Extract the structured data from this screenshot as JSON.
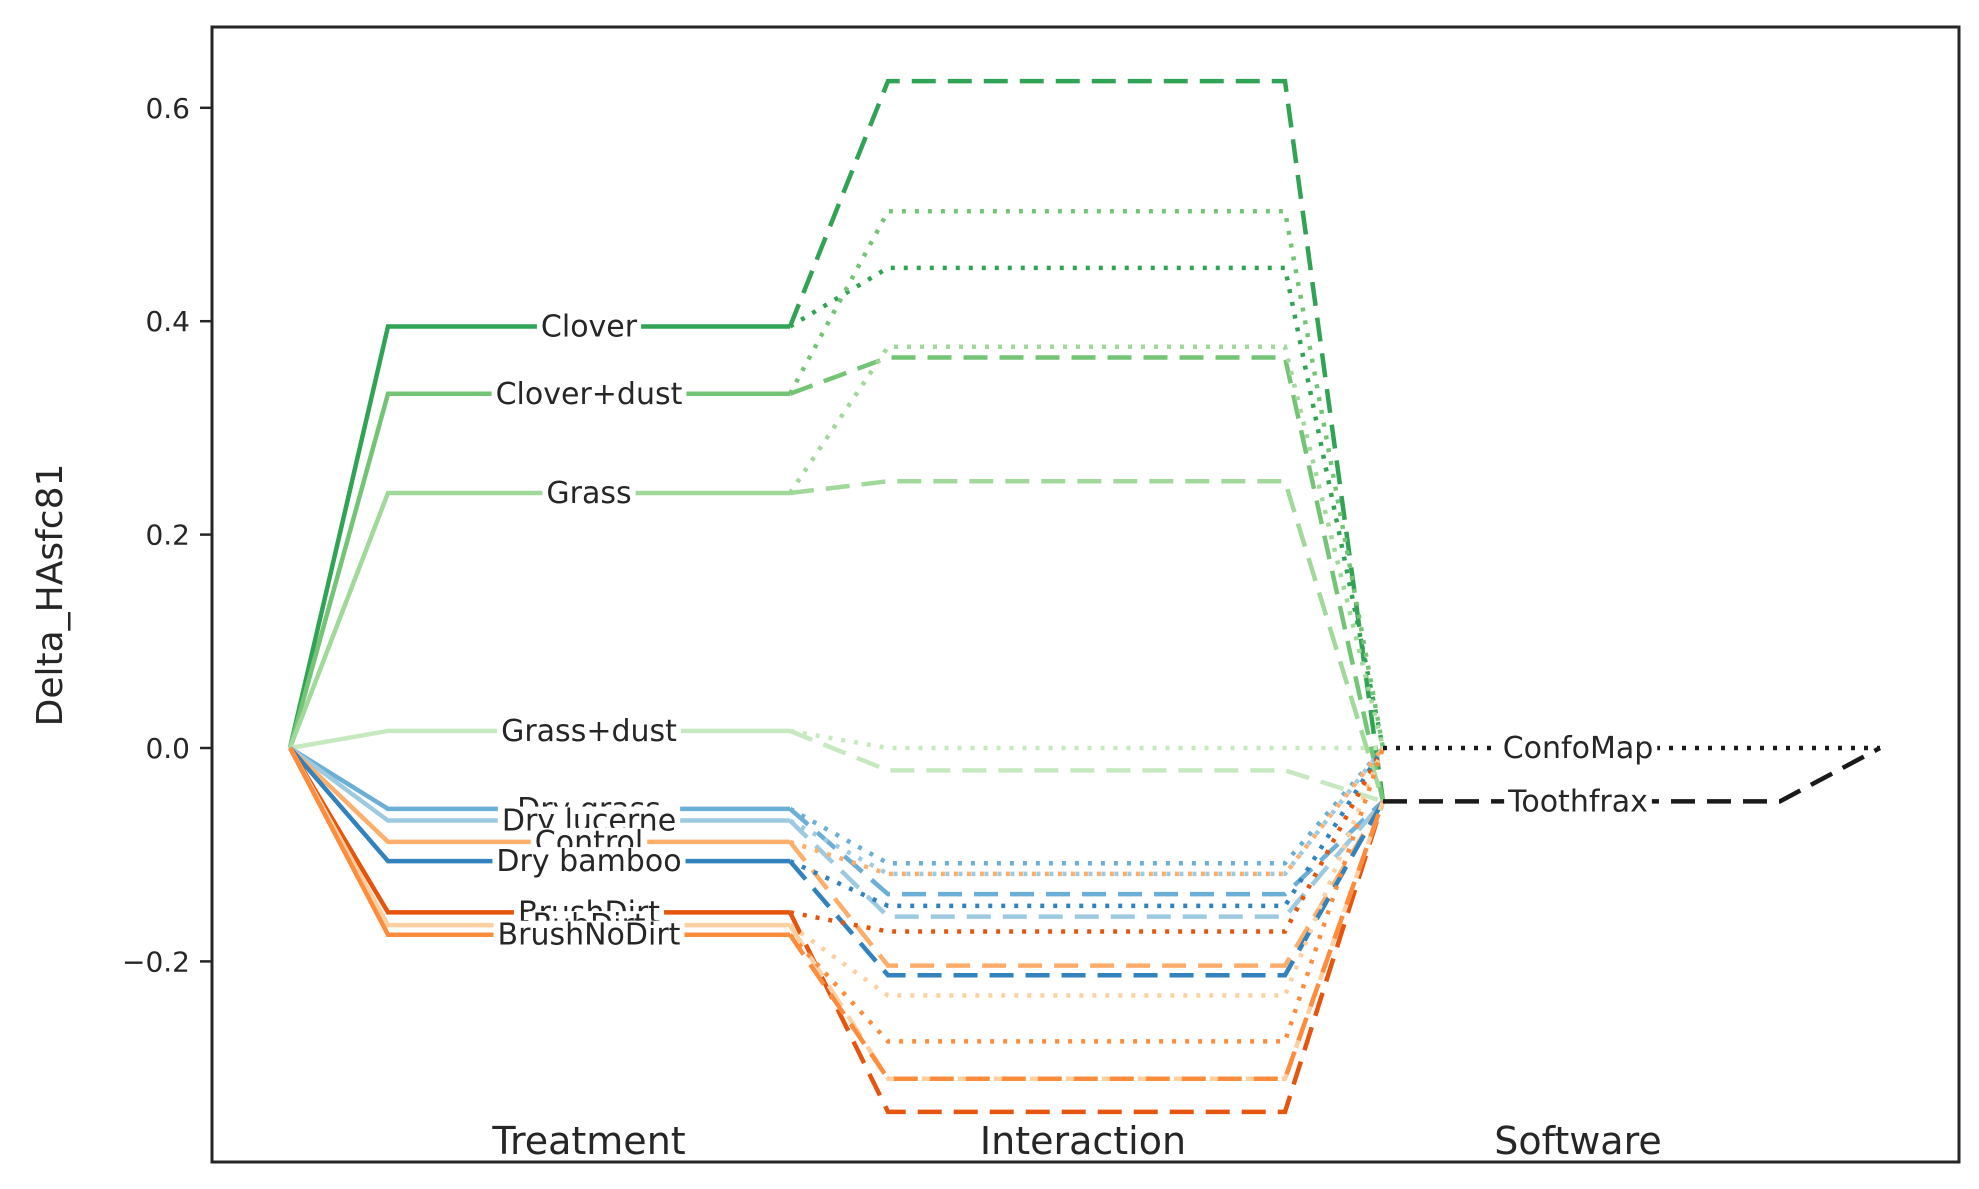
{
  "chart_data": {
    "type": "line",
    "title": "",
    "xlabel": "",
    "ylabel": "Delta_HAsfc81",
    "ylim": [
      -0.385,
      0.67
    ],
    "y_ticks": [
      {
        "value": 0.6,
        "label": "0.6"
      },
      {
        "value": 0.4,
        "label": "0.4"
      },
      {
        "value": 0.2,
        "label": "0.2"
      },
      {
        "value": 0.0,
        "label": "0.0"
      },
      {
        "value": -0.2,
        "label": "−0.2"
      }
    ],
    "group_labels": [
      "Treatment",
      "Interaction",
      "Software"
    ],
    "grid": false,
    "legend": "none",
    "treatment": [
      {
        "name": "Clover",
        "value": 0.395,
        "color": "#31a354",
        "conf": 0.45,
        "tooth": 0.625
      },
      {
        "name": "Clover+dust",
        "value": 0.332,
        "color": "#74c476",
        "conf": 0.503,
        "tooth": 0.366
      },
      {
        "name": "Grass",
        "value": 0.239,
        "color": "#a1d99b",
        "conf": 0.376,
        "tooth": 0.25
      },
      {
        "name": "Grass+dust",
        "value": 0.016,
        "color": "#c7e9c0",
        "conf": 0.0,
        "tooth": -0.021
      },
      {
        "name": "Dry grass",
        "value": -0.057,
        "color": "#6baed6",
        "conf": -0.108,
        "tooth": -0.137
      },
      {
        "name": "Dry lucerne",
        "value": -0.068,
        "color": "#9ecae1",
        "conf": -0.118,
        "tooth": -0.158
      },
      {
        "name": "Control",
        "value": -0.088,
        "color": "#fdae6b",
        "conf": -0.118,
        "tooth": -0.204
      },
      {
        "name": "Dry bamboo",
        "value": -0.106,
        "color": "#3182bd",
        "conf": -0.148,
        "tooth": -0.213
      },
      {
        "name": "BrushDirt",
        "value": -0.154,
        "color": "#e6550d",
        "conf": -0.172,
        "tooth": -0.341
      },
      {
        "name": "RubDirt",
        "value": -0.166,
        "color": "#fdd0a2",
        "conf": -0.232,
        "tooth": -0.31
      },
      {
        "name": "BrushNoDirt",
        "value": -0.175,
        "color": "#fd8d3c",
        "conf": -0.275,
        "tooth": -0.31
      }
    ],
    "software": [
      {
        "name": "ConfoMap",
        "value": 0.0,
        "style": "dotted",
        "color": "#1a1a1a"
      },
      {
        "name": "Toothfrax",
        "value": -0.05,
        "style": "dashed",
        "color": "#1a1a1a"
      }
    ]
  }
}
